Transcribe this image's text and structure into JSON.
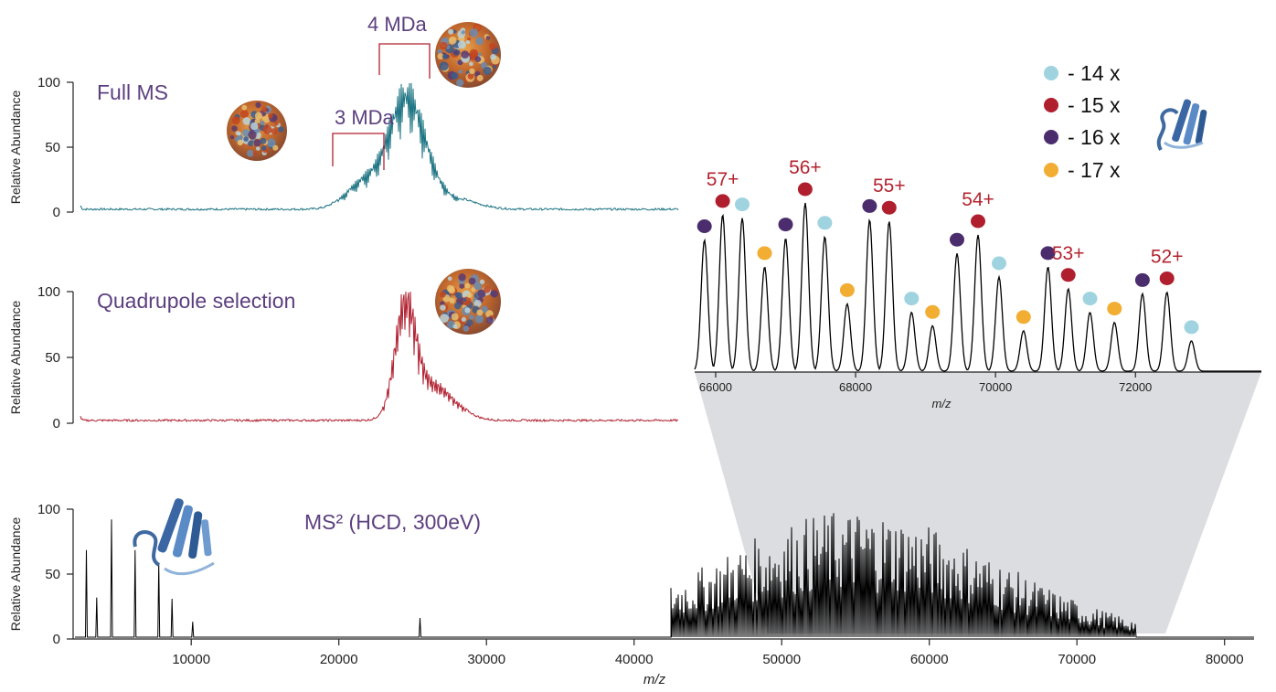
{
  "chart_data": [
    {
      "type": "line",
      "panel": "full-ms",
      "label": "Full MS",
      "ylabel": "Relative Abundance",
      "yticks": [
        0,
        50,
        100
      ],
      "ylim": [
        0,
        100
      ],
      "xlim": [
        2000,
        82000
      ],
      "color": "#1a7281",
      "peaks": [
        {
          "center": 24600,
          "height": 100,
          "width": 1250
        },
        {
          "center": 21600,
          "height": 22,
          "width": 1150
        },
        {
          "center": 2350,
          "height": 6,
          "width": 120
        },
        {
          "center": 27800,
          "height": 8,
          "width": 1500
        }
      ],
      "brackets": [
        {
          "label": "3 MDa",
          "x_start": 19300,
          "x_end": 22600
        },
        {
          "label": "4 MDa",
          "x_start": 22400,
          "x_end": 25700
        }
      ]
    },
    {
      "type": "line",
      "panel": "quadrupole-selection",
      "label": "Quadrupole selection",
      "ylabel": "Relative Abundance",
      "yticks": [
        0,
        50,
        100
      ],
      "ylim": [
        0,
        100
      ],
      "xlim": [
        2000,
        82000
      ],
      "color": "#b01f2e",
      "peaks": [
        {
          "center": 24500,
          "height": 95,
          "width": 700
        },
        {
          "center": 26400,
          "height": 30,
          "width": 1400
        },
        {
          "center": 2350,
          "height": 6,
          "width": 120
        }
      ]
    },
    {
      "type": "line",
      "panel": "ms2",
      "label": "MS² (HCD, 300eV)",
      "ylabel": "Relative Abundance",
      "xlabel": "m/z",
      "yticks": [
        0,
        50,
        100
      ],
      "xticks": [
        10000,
        20000,
        30000,
        40000,
        50000,
        60000,
        70000,
        80000
      ],
      "ylim": [
        0,
        100
      ],
      "xlim": [
        2000,
        82000
      ],
      "color": "#000000",
      "low_mass_peaks": [
        {
          "x": 2900,
          "y": 68
        },
        {
          "x": 3600,
          "y": 31
        },
        {
          "x": 4600,
          "y": 92
        },
        {
          "x": 6200,
          "y": 68
        },
        {
          "x": 7800,
          "y": 58
        },
        {
          "x": 8700,
          "y": 30
        },
        {
          "x": 10100,
          "y": 12
        },
        {
          "x": 25500,
          "y": 15
        }
      ],
      "envelope": {
        "center": 55000,
        "width": 9500,
        "height": 100,
        "x_start": 42500,
        "x_end": 74000
      }
    },
    {
      "type": "line",
      "panel": "inset",
      "xlabel": "m/z",
      "xticks": [
        66000,
        68000,
        70000,
        72000
      ],
      "xlim": [
        65700,
        73800
      ],
      "color": "#000000",
      "peaks": [
        {
          "x": 65840,
          "y": 78,
          "marker": "16"
        },
        {
          "x": 66100,
          "y": 93,
          "marker": "15"
        },
        {
          "x": 66380,
          "y": 91,
          "marker": "14"
        },
        {
          "x": 66700,
          "y": 62,
          "marker": "17"
        },
        {
          "x": 67000,
          "y": 79,
          "marker": "16"
        },
        {
          "x": 67280,
          "y": 100,
          "marker": "15"
        },
        {
          "x": 67560,
          "y": 80,
          "marker": "14"
        },
        {
          "x": 67880,
          "y": 40,
          "marker": "17"
        },
        {
          "x": 68200,
          "y": 90,
          "marker": "16"
        },
        {
          "x": 68480,
          "y": 89,
          "marker": "15"
        },
        {
          "x": 68800,
          "y": 35,
          "marker": "14"
        },
        {
          "x": 69100,
          "y": 27,
          "marker": "17"
        },
        {
          "x": 69450,
          "y": 70,
          "marker": "16"
        },
        {
          "x": 69750,
          "y": 81,
          "marker": "15"
        },
        {
          "x": 70050,
          "y": 56,
          "marker": "14"
        },
        {
          "x": 70400,
          "y": 24,
          "marker": "17"
        },
        {
          "x": 70750,
          "y": 62,
          "marker": "16"
        },
        {
          "x": 71040,
          "y": 49,
          "marker": "15"
        },
        {
          "x": 71350,
          "y": 35,
          "marker": "14"
        },
        {
          "x": 71700,
          "y": 29,
          "marker": "17"
        },
        {
          "x": 72100,
          "y": 46,
          "marker": "16"
        },
        {
          "x": 72450,
          "y": 47,
          "marker": "15"
        },
        {
          "x": 72800,
          "y": 18,
          "marker": "14"
        }
      ],
      "charge_states": [
        {
          "label": "57+",
          "x": 66100
        },
        {
          "label": "56+",
          "x": 67280
        },
        {
          "label": "55+",
          "x": 68480
        },
        {
          "label": "54+",
          "x": 69750
        },
        {
          "label": "53+",
          "x": 71040
        },
        {
          "label": "52+",
          "x": 72450
        }
      ]
    }
  ],
  "legend": {
    "placement": "top-right",
    "items": [
      {
        "key": "14",
        "label": "- 14 x",
        "color": "#9fd3df"
      },
      {
        "key": "15",
        "label": "- 15 x",
        "color": "#b01f2e"
      },
      {
        "key": "16",
        "label": "- 16 x",
        "color": "#4b2d6e"
      },
      {
        "key": "17",
        "label": "- 17 x",
        "color": "#f2ad33"
      }
    ]
  },
  "icons": [
    "capsid-3mda-icon",
    "capsid-4mda-icon",
    "protein-structure-icon"
  ]
}
